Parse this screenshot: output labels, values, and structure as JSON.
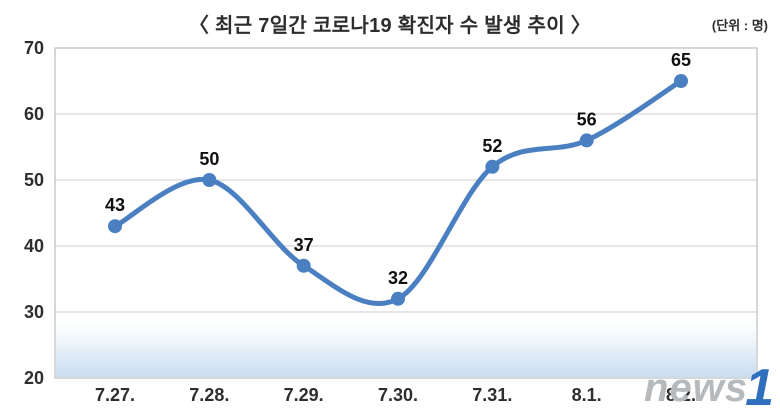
{
  "header": {
    "title": "〈 최근 7일간 코로나19 확진자 수 발생 추이 〉",
    "unit_label": "(단위 : 명)"
  },
  "watermark": {
    "gray": "news",
    "blue": "1"
  },
  "chart_data": {
    "type": "line",
    "title": "최근 7일간 코로나19 확진자 수 발생 추이",
    "unit": "명",
    "categories": [
      "7.27.",
      "7.28.",
      "7.29.",
      "7.30.",
      "7.31.",
      "8.1.",
      "8.2."
    ],
    "values": [
      43,
      50,
      37,
      32,
      52,
      56,
      65
    ],
    "ylim": [
      20,
      70
    ],
    "ytick_step": 10,
    "grid": true,
    "legend": "none",
    "smooth": true,
    "marker": "circle",
    "line_color": "#4a80c2",
    "grid_color": "#c9ced3",
    "border_color": "#b8bdc3",
    "band_color": "#c9ddf0"
  }
}
